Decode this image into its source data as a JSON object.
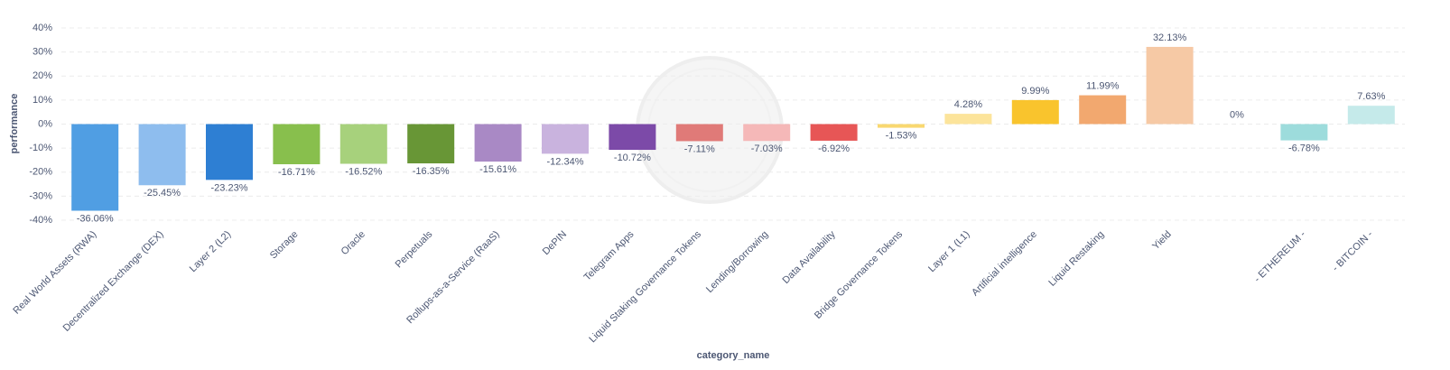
{
  "chart_data": {
    "type": "bar",
    "xlabel": "category_name",
    "ylabel": "performance",
    "categories": [
      "Real World Assets (RWA)",
      "Decentralized Exchange (DEX)",
      "Layer 2 (L2)",
      "Storage",
      "Oracle",
      "Perpetuals",
      "Rollups-as-a-Service (RaaS)",
      "DePIN",
      "Telegram Apps",
      "Liquid Staking Governance Tokens",
      "Lending/Borrowing",
      "Data Availability",
      "Bridge Governance Tokens",
      "Layer 1 (L1)",
      "Artificial intelligence",
      "Liquid Restaking",
      "Yield",
      null,
      "- ETHEREUM -",
      "- BITCOIN -"
    ],
    "values": [
      -36.06,
      -25.45,
      -23.23,
      -16.71,
      -16.52,
      -16.35,
      -15.61,
      -12.34,
      -10.72,
      -7.11,
      -7.03,
      -6.92,
      -1.53,
      4.28,
      9.99,
      11.99,
      32.13,
      0,
      -6.78,
      7.63
    ],
    "value_labels": [
      "-36.06%",
      "-25.45%",
      "-23.23%",
      "-16.71%",
      "-16.52%",
      "-16.35%",
      "-15.61%",
      "-12.34%",
      "-10.72%",
      "-7.11%",
      "-7.03%",
      "-6.92%",
      "-1.53%",
      "4.28%",
      "9.99%",
      "11.99%",
      "32.13%",
      "0%",
      "-6.78%",
      "7.63%"
    ],
    "colors": [
      "#509ee3",
      "#8ebdee",
      "#2e7fd3",
      "#88bf4d",
      "#a7d17c",
      "#689636",
      "#a989c5",
      "#c9b3de",
      "#7c4aa8",
      "#e07a78",
      "#f5b8b8",
      "#e75656",
      "#f9d870",
      "#fce49b",
      "#f9c42d",
      "#f2a86f",
      "#f6c9a5",
      "#98d9d9",
      "#9ddcdc",
      "#c5eaea"
    ],
    "ylim": [
      -40,
      40
    ],
    "yticks": [
      {
        "value": -40,
        "label": "-40%"
      },
      {
        "value": -30,
        "label": "-30%"
      },
      {
        "value": -20,
        "label": "-20%"
      },
      {
        "value": -10,
        "label": "-10%"
      },
      {
        "value": 0,
        "label": "0%"
      },
      {
        "value": 10,
        "label": "10%"
      },
      {
        "value": 20,
        "label": "20%"
      },
      {
        "value": 30,
        "label": "30%"
      },
      {
        "value": 40,
        "label": "40%"
      }
    ],
    "grid": true
  }
}
